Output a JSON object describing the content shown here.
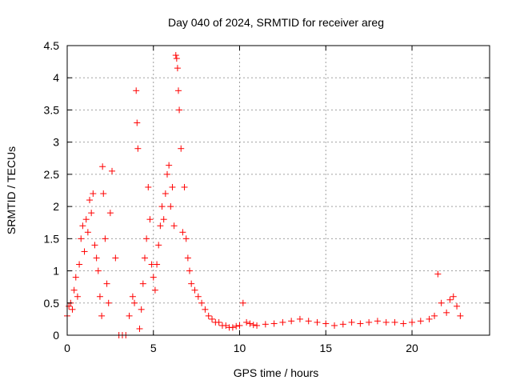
{
  "chart_data": {
    "type": "scatter",
    "title": "Day 040 of 2024, SRMTID for receiver areg",
    "xlabel": "GPS time / hours",
    "ylabel": "SRMTID / TECUs",
    "xlim": [
      0,
      24.5
    ],
    "ylim": [
      0,
      4.5
    ],
    "xticks": [
      0,
      5,
      10,
      15,
      20
    ],
    "xtick_labels": [
      "0",
      "5",
      "10",
      "15",
      "20"
    ],
    "yticks": [
      0,
      0.5,
      1,
      1.5,
      2,
      2.5,
      3,
      3.5,
      4,
      4.5
    ],
    "ytick_labels": [
      "0",
      "0.5",
      "1",
      "1.5",
      "2",
      "2.5",
      "3",
      "3.5",
      "4",
      "4.5"
    ],
    "grid": true,
    "marker": "+",
    "series": [
      {
        "name": "SRMTID",
        "color": "#ff0000",
        "x": [
          0.0,
          0.1,
          0.2,
          0.3,
          0.4,
          0.5,
          0.6,
          0.7,
          0.8,
          0.9,
          1.0,
          1.1,
          1.2,
          1.3,
          1.4,
          1.5,
          1.6,
          1.7,
          1.8,
          1.9,
          2.0,
          2.05,
          2.1,
          2.2,
          2.3,
          2.4,
          2.5,
          2.6,
          2.8,
          3.0,
          3.2,
          3.4,
          3.6,
          3.8,
          3.9,
          4.0,
          4.05,
          4.1,
          4.2,
          4.3,
          4.4,
          4.5,
          4.6,
          4.7,
          4.8,
          4.9,
          5.0,
          5.1,
          5.2,
          5.3,
          5.4,
          5.5,
          5.6,
          5.7,
          5.8,
          5.9,
          6.0,
          6.1,
          6.2,
          6.3,
          6.35,
          6.4,
          6.45,
          6.5,
          6.6,
          6.7,
          6.8,
          6.9,
          7.0,
          7.1,
          7.2,
          7.4,
          7.6,
          7.8,
          8.0,
          8.2,
          8.4,
          8.6,
          8.8,
          9.0,
          9.2,
          9.4,
          9.6,
          9.8,
          10.0,
          10.2,
          10.4,
          10.6,
          10.8,
          11.0,
          11.5,
          12.0,
          12.5,
          13.0,
          13.5,
          14.0,
          14.5,
          15.0,
          15.5,
          16.0,
          16.5,
          17.0,
          17.5,
          18.0,
          18.5,
          19.0,
          19.5,
          20.0,
          20.5,
          21.0,
          21.3,
          21.5,
          21.7,
          22.0,
          22.2,
          22.4,
          22.6,
          22.8
        ],
        "y": [
          0.3,
          0.45,
          0.5,
          0.4,
          0.7,
          0.9,
          0.6,
          1.1,
          1.5,
          1.7,
          1.3,
          1.8,
          1.6,
          2.1,
          1.9,
          2.2,
          1.4,
          1.2,
          1.0,
          0.6,
          0.3,
          2.62,
          2.2,
          1.5,
          0.8,
          0.5,
          1.9,
          2.55,
          1.2,
          0.0,
          0.0,
          0.0,
          0.3,
          0.6,
          0.5,
          3.8,
          3.3,
          2.9,
          0.1,
          0.4,
          0.8,
          1.2,
          1.5,
          2.3,
          1.8,
          1.1,
          0.9,
          0.7,
          1.1,
          1.4,
          1.7,
          2.0,
          1.8,
          2.2,
          2.5,
          2.64,
          2.0,
          2.3,
          1.7,
          4.35,
          4.3,
          4.15,
          3.8,
          3.5,
          2.9,
          1.6,
          2.3,
          1.5,
          1.2,
          1.0,
          0.8,
          0.7,
          0.6,
          0.5,
          0.4,
          0.3,
          0.25,
          0.2,
          0.2,
          0.15,
          0.15,
          0.12,
          0.12,
          0.14,
          0.15,
          0.5,
          0.2,
          0.18,
          0.16,
          0.15,
          0.17,
          0.18,
          0.2,
          0.22,
          0.25,
          0.22,
          0.2,
          0.18,
          0.15,
          0.17,
          0.2,
          0.18,
          0.2,
          0.22,
          0.2,
          0.2,
          0.18,
          0.2,
          0.22,
          0.25,
          0.3,
          0.95,
          0.5,
          0.35,
          0.55,
          0.6,
          0.45,
          0.3
        ]
      }
    ]
  }
}
